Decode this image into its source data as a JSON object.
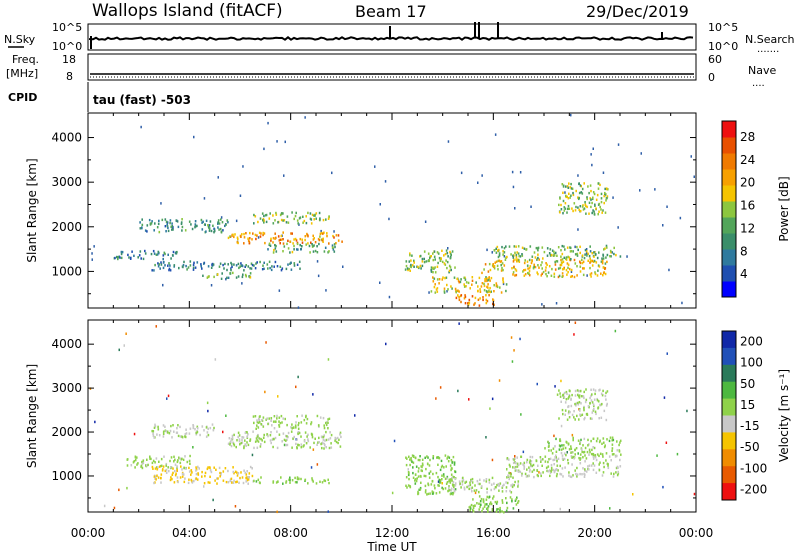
{
  "header": {
    "title": "Wallops Island (fitACF)",
    "beam": "Beam 17",
    "date": "29/Dec/2019"
  },
  "left_labels": {
    "nsky": "N.Sky",
    "nsky_top": "10^5",
    "nsky_bottom": "10^0",
    "freq": "Freq.",
    "freq_unit": "[MHz]",
    "freq_top": "18",
    "freq_bottom": "8",
    "cpid": "CPID",
    "cpid_text": "tau (fast) -503"
  },
  "right_labels": {
    "nsearch": "N.Search",
    "nsearch_top": "10^5",
    "nsearch_bottom": "10^0",
    "nave": "Nave",
    "nave_top": "60",
    "nave_bottom": "0"
  },
  "colors": {
    "power": [
      "#0000ff",
      "#1f4fb0",
      "#2f7a9e",
      "#3a8e6a",
      "#52a55a",
      "#8cc63f",
      "#f5c400",
      "#f7a000",
      "#f07a00",
      "#e85000",
      "#ee1010"
    ],
    "velocity": [
      "#1028a8",
      "#2050b8",
      "#2a7a5a",
      "#4db840",
      "#8fd24a",
      "#c8c8c8",
      "#f5c400",
      "#f08c00",
      "#e85a00",
      "#ee1010"
    ]
  },
  "chart_data": [
    {
      "type": "heatmap",
      "ylabel": "Slant Range [km]",
      "yticks": [
        1000,
        2000,
        3000,
        4000
      ],
      "ylim": [
        180,
        4550
      ],
      "xticks": [
        "00:00",
        "04:00",
        "08:00",
        "12:00",
        "16:00",
        "20:00",
        "00:00"
      ],
      "xlim_hours": [
        0,
        24
      ],
      "colorbar": {
        "label": "Power [dB]",
        "ticks": [
          "4",
          "8",
          "12",
          "16",
          "20",
          "24",
          "28"
        ],
        "range": [
          0,
          30
        ]
      },
      "regions": [
        {
          "t_start": 1.0,
          "t_end": 3.5,
          "r_start": 1300,
          "r_end": 1500,
          "value": 8
        },
        {
          "t_start": 2.0,
          "t_end": 5.5,
          "r_start": 1900,
          "r_end": 2200,
          "value": 9
        },
        {
          "t_start": 2.5,
          "t_end": 8.5,
          "r_start": 1050,
          "r_end": 1250,
          "value": 8
        },
        {
          "t_start": 4.5,
          "t_end": 6.5,
          "r_start": 850,
          "r_end": 1000,
          "value": 13
        },
        {
          "t_start": 5.5,
          "t_end": 10.0,
          "r_start": 1650,
          "r_end": 1900,
          "value": 21
        },
        {
          "t_start": 6.5,
          "t_end": 9.5,
          "r_start": 2100,
          "r_end": 2350,
          "value": 14
        },
        {
          "t_start": 7.0,
          "t_end": 9.8,
          "r_start": 1450,
          "r_end": 1650,
          "value": 12
        },
        {
          "t_start": 12.5,
          "t_end": 14.5,
          "r_start": 1000,
          "r_end": 1500,
          "value": 14
        },
        {
          "t_start": 13.5,
          "t_end": 16.5,
          "r_start": 550,
          "r_end": 900,
          "value": 17
        },
        {
          "t_start": 14.5,
          "t_end": 16.0,
          "r_start": 250,
          "r_end": 500,
          "value": 22
        },
        {
          "t_start": 15.5,
          "t_end": 20.5,
          "r_start": 900,
          "r_end": 1300,
          "value": 18
        },
        {
          "t_start": 16.0,
          "t_end": 21.0,
          "r_start": 1300,
          "r_end": 1600,
          "value": 13
        },
        {
          "t_start": 18.5,
          "t_end": 20.5,
          "r_start": 2300,
          "r_end": 3000,
          "value": 14
        }
      ]
    },
    {
      "type": "heatmap",
      "ylabel": "Slant Range [km]",
      "yticks": [
        1000,
        2000,
        3000,
        4000
      ],
      "ylim": [
        180,
        4550
      ],
      "xticks": [
        "00:00",
        "04:00",
        "08:00",
        "12:00",
        "16:00",
        "20:00",
        "00:00"
      ],
      "xlim_hours": [
        0,
        24
      ],
      "xlabel": "Time UT",
      "colorbar": {
        "label": "Velocity [m s⁻¹]",
        "ticks": [
          "200",
          "100",
          "50",
          "15",
          "-15",
          "-50",
          "-100",
          "-200"
        ],
        "range": [
          -250,
          250
        ]
      },
      "regions": [
        {
          "t_start": 1.5,
          "t_end": 4.0,
          "r_start": 1200,
          "r_end": 1500,
          "value": 20
        },
        {
          "t_start": 2.5,
          "t_end": 5.0,
          "r_start": 1900,
          "r_end": 2200,
          "value": 0
        },
        {
          "t_start": 2.5,
          "t_end": 6.5,
          "r_start": 850,
          "r_end": 1250,
          "value": -60
        },
        {
          "t_start": 5.5,
          "t_end": 10.0,
          "r_start": 1650,
          "r_end": 2050,
          "value": 0
        },
        {
          "t_start": 6.5,
          "t_end": 9.5,
          "r_start": 2100,
          "r_end": 2400,
          "value": 20
        },
        {
          "t_start": 6.5,
          "t_end": 9.5,
          "r_start": 850,
          "r_end": 1000,
          "value": 30
        },
        {
          "t_start": 12.5,
          "t_end": 14.5,
          "r_start": 600,
          "r_end": 1500,
          "value": 30
        },
        {
          "t_start": 14.0,
          "t_end": 17.0,
          "r_start": 650,
          "r_end": 1000,
          "value": 0
        },
        {
          "t_start": 15.0,
          "t_end": 17.0,
          "r_start": 200,
          "r_end": 600,
          "value": 35
        },
        {
          "t_start": 16.5,
          "t_end": 21.0,
          "r_start": 1000,
          "r_end": 1500,
          "value": 0
        },
        {
          "t_start": 18.5,
          "t_end": 20.5,
          "r_start": 2300,
          "r_end": 3000,
          "value": 0
        },
        {
          "t_start": 18.0,
          "t_end": 21.0,
          "r_start": 1500,
          "r_end": 1900,
          "value": 25
        }
      ]
    }
  ]
}
